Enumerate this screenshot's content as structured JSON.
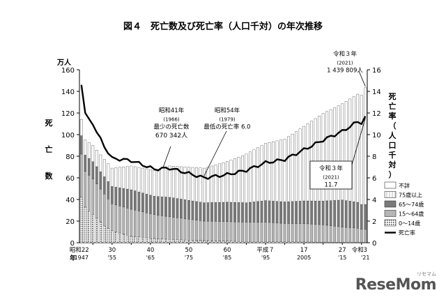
{
  "chart_data": {
    "type": "bar",
    "title": "図４　死亡数及び死亡率（人口千対）の年次推移",
    "y_left": {
      "unit": "万人",
      "label": "死亡数",
      "ticks": [
        0,
        20,
        40,
        60,
        80,
        100,
        120,
        140,
        160
      ],
      "range": [
        0,
        160
      ]
    },
    "y_right": {
      "label": "死亡率（人口千対）",
      "ticks": [
        0,
        2,
        4,
        6,
        8,
        10,
        12,
        14,
        16
      ],
      "range": [
        0,
        16
      ]
    },
    "x_axis": {
      "label": "年",
      "tick_labels_top": [
        {
          "text": "昭和22",
          "year": 1947
        },
        {
          "text": "30",
          "year": 1955
        },
        {
          "text": "40",
          "year": 1965
        },
        {
          "text": "50",
          "year": 1975
        },
        {
          "text": "60",
          "year": 1985
        },
        {
          "text": "平成７",
          "year": 1995
        },
        {
          "text": "17",
          "year": 2005
        },
        {
          "text": "27",
          "year": 2015
        },
        {
          "text": "令和",
          "year": 2019
        },
        {
          "text": "3",
          "year": 2021
        }
      ],
      "tick_labels_bottom": [
        {
          "text": "1947",
          "year": 1947
        },
        {
          "text": "'55",
          "year": 1955
        },
        {
          "text": "'65",
          "year": 1965
        },
        {
          "text": "'75",
          "year": 1975
        },
        {
          "text": "'85",
          "year": 1985
        },
        {
          "text": "'95",
          "year": 1995
        },
        {
          "text": "2005",
          "year": 2005
        },
        {
          "text": "'15",
          "year": 2015
        },
        {
          "text": "'21",
          "year": 2021
        }
      ]
    },
    "legend": {
      "placement": "right",
      "items": [
        {
          "label": "不詳",
          "key": "unknown"
        },
        {
          "label": "75歳以上",
          "key": "age75plus"
        },
        {
          "label": "65～74歳",
          "key": "age65_74"
        },
        {
          "label": "15～64歳",
          "key": "age15_64"
        },
        {
          "label": "0～14歳",
          "key": "age0_14"
        },
        {
          "label": "死亡率",
          "key": "rate"
        }
      ]
    },
    "colors": {
      "age75plus": "#ffffff",
      "age65_74": "#7a7a7a",
      "age15_64": "#b5b5b5",
      "age0_14": "#d9d9d9",
      "line": "#000000",
      "frame": "#000000"
    },
    "anchors": [
      {
        "year": 1947,
        "total": 114,
        "a0": 42,
        "a15": 40,
        "a65": 17,
        "a75": 15,
        "rate": 14.6
      },
      {
        "year": 1948,
        "total": 95,
        "a0": 33,
        "a15": 33,
        "a65": 15,
        "a75": 14,
        "rate": 12.0
      },
      {
        "year": 1950,
        "total": 90,
        "a0": 26,
        "a15": 33,
        "a65": 16,
        "a75": 15,
        "rate": 10.9
      },
      {
        "year": 1953,
        "total": 77,
        "a0": 16,
        "a15": 29,
        "a65": 16,
        "a75": 16,
        "rate": 8.9
      },
      {
        "year": 1955,
        "total": 69,
        "a0": 11,
        "a15": 25,
        "a65": 16,
        "a75": 17,
        "rate": 7.8
      },
      {
        "year": 1960,
        "total": 71,
        "a0": 6,
        "a15": 25,
        "a65": 18,
        "a75": 22,
        "rate": 7.6
      },
      {
        "year": 1966,
        "total": 67,
        "a0": 4,
        "a15": 22,
        "a65": 17,
        "a75": 24,
        "rate": 6.8
      },
      {
        "year": 1970,
        "total": 71,
        "a0": 3,
        "a15": 21,
        "a65": 18,
        "a75": 29,
        "rate": 6.9
      },
      {
        "year": 1979,
        "total": 69,
        "a0": 2,
        "a15": 18,
        "a65": 17,
        "a75": 32,
        "rate": 6.0
      },
      {
        "year": 1985,
        "total": 75,
        "a0": 1.5,
        "a15": 18,
        "a65": 18,
        "a75": 37.5,
        "rate": 6.3
      },
      {
        "year": 1990,
        "total": 82,
        "a0": 1,
        "a15": 18,
        "a65": 18,
        "a75": 45,
        "rate": 6.7
      },
      {
        "year": 1995,
        "total": 92,
        "a0": 1,
        "a15": 18,
        "a65": 20,
        "a75": 53,
        "rate": 7.4
      },
      {
        "year": 2000,
        "total": 96,
        "a0": 0.8,
        "a15": 17,
        "a65": 20,
        "a75": 58,
        "rate": 7.7
      },
      {
        "year": 2005,
        "total": 108,
        "a0": 0.7,
        "a15": 17,
        "a65": 21,
        "a75": 69,
        "rate": 8.6
      },
      {
        "year": 2010,
        "total": 120,
        "a0": 0.6,
        "a15": 16,
        "a65": 22,
        "a75": 81,
        "rate": 9.5
      },
      {
        "year": 2015,
        "total": 129,
        "a0": 0.5,
        "a15": 14,
        "a65": 25,
        "a75": 89,
        "rate": 10.3
      },
      {
        "year": 2019,
        "total": 138,
        "a0": 0.4,
        "a15": 13,
        "a65": 24,
        "a75": 100,
        "rate": 11.2
      },
      {
        "year": 2020,
        "total": 137,
        "a0": 0.4,
        "a15": 12,
        "a65": 23,
        "a75": 101,
        "rate": 11.1
      },
      {
        "year": 2021,
        "total": 144,
        "a0": 0.4,
        "a15": 12,
        "a65": 23,
        "a75": 108,
        "rate": 11.7
      }
    ],
    "annotations": [
      {
        "id": "min_deaths",
        "lines": [
          "昭和41年",
          "(1966)",
          "最少の死亡数",
          "670 342人"
        ]
      },
      {
        "id": "min_rate",
        "lines": [
          "昭和54年",
          "(1979)",
          "最低の死亡率 6.0"
        ]
      },
      {
        "id": "r3_deaths",
        "lines": [
          "令和３年",
          "(2021)",
          "1 439 809人"
        ]
      },
      {
        "id": "r3_rate",
        "lines": [
          "令和３年",
          "(2021)",
          "11.7"
        ]
      }
    ]
  },
  "watermark": {
    "text": "ReseMom",
    "small": "リセマム"
  }
}
